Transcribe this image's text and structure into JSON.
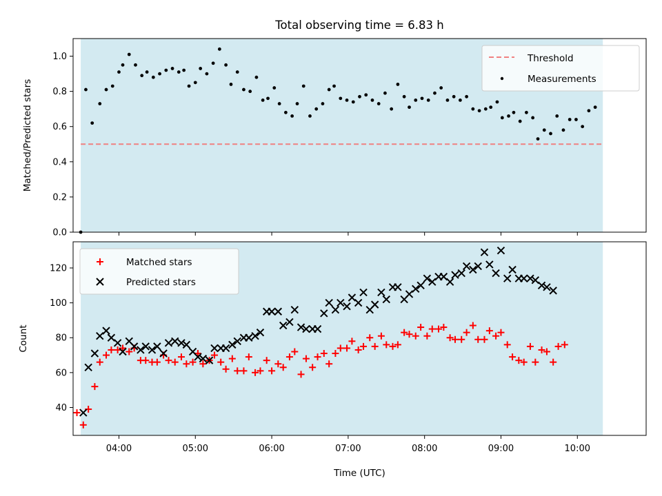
{
  "chart_data": [
    {
      "type": "scatter",
      "panel": "top",
      "title": "Total observing time = 6.83 h",
      "ylabel": "Matched/Predicted stars",
      "xlabel": "",
      "xlim": [
        "03:24",
        "10:54"
      ],
      "ylim": [
        0,
        1.1
      ],
      "yticks": [
        "0.0",
        "0.2",
        "0.4",
        "0.6",
        "0.8",
        "1.0"
      ],
      "observing_window": [
        "03:30",
        "10:20"
      ],
      "observing_window_color": "#d3eaf1",
      "legend_position": "top-right",
      "threshold": {
        "name": "Threshold",
        "value": 0.5,
        "x_range": [
          "03:30",
          "10:20"
        ],
        "color": "#f08080"
      },
      "series": [
        {
          "name": "Measurements",
          "color": "#000000",
          "points": [
            [
              "03:30",
              0.0
            ],
            [
              "03:34",
              0.81
            ],
            [
              "03:39",
              0.62
            ],
            [
              "03:45",
              0.73
            ],
            [
              "03:50",
              0.81
            ],
            [
              "03:55",
              0.83
            ],
            [
              "04:00",
              0.91
            ],
            [
              "04:03",
              0.95
            ],
            [
              "04:08",
              1.01
            ],
            [
              "04:13",
              0.95
            ],
            [
              "04:18",
              0.89
            ],
            [
              "04:22",
              0.91
            ],
            [
              "04:27",
              0.88
            ],
            [
              "04:32",
              0.9
            ],
            [
              "04:37",
              0.92
            ],
            [
              "04:42",
              0.93
            ],
            [
              "04:47",
              0.91
            ],
            [
              "04:51",
              0.92
            ],
            [
              "04:55",
              0.83
            ],
            [
              "05:00",
              0.85
            ],
            [
              "05:04",
              0.93
            ],
            [
              "05:09",
              0.9
            ],
            [
              "05:14",
              0.96
            ],
            [
              "05:19",
              1.04
            ],
            [
              "05:24",
              0.95
            ],
            [
              "05:28",
              0.84
            ],
            [
              "05:33",
              0.91
            ],
            [
              "05:38",
              0.81
            ],
            [
              "05:43",
              0.8
            ],
            [
              "05:48",
              0.88
            ],
            [
              "05:53",
              0.75
            ],
            [
              "05:57",
              0.76
            ],
            [
              "06:02",
              0.82
            ],
            [
              "06:06",
              0.73
            ],
            [
              "06:11",
              0.68
            ],
            [
              "06:16",
              0.66
            ],
            [
              "06:20",
              0.73
            ],
            [
              "06:25",
              0.83
            ],
            [
              "06:30",
              0.66
            ],
            [
              "06:35",
              0.7
            ],
            [
              "06:40",
              0.73
            ],
            [
              "06:45",
              0.81
            ],
            [
              "06:49",
              0.83
            ],
            [
              "06:54",
              0.76
            ],
            [
              "06:59",
              0.75
            ],
            [
              "07:04",
              0.74
            ],
            [
              "07:09",
              0.77
            ],
            [
              "07:14",
              0.78
            ],
            [
              "07:19",
              0.75
            ],
            [
              "07:24",
              0.73
            ],
            [
              "07:29",
              0.79
            ],
            [
              "07:34",
              0.7
            ],
            [
              "07:39",
              0.84
            ],
            [
              "07:44",
              0.77
            ],
            [
              "07:48",
              0.71
            ],
            [
              "07:53",
              0.75
            ],
            [
              "07:58",
              0.76
            ],
            [
              "08:03",
              0.75
            ],
            [
              "08:08",
              0.79
            ],
            [
              "08:13",
              0.82
            ],
            [
              "08:18",
              0.75
            ],
            [
              "08:23",
              0.77
            ],
            [
              "08:28",
              0.75
            ],
            [
              "08:33",
              0.77
            ],
            [
              "08:38",
              0.7
            ],
            [
              "08:43",
              0.69
            ],
            [
              "08:48",
              0.7
            ],
            [
              "08:52",
              0.71
            ],
            [
              "08:57",
              0.74
            ],
            [
              "09:01",
              0.65
            ],
            [
              "09:06",
              0.66
            ],
            [
              "09:10",
              0.68
            ],
            [
              "09:15",
              0.63
            ],
            [
              "09:20",
              0.68
            ],
            [
              "09:25",
              0.65
            ],
            [
              "09:29",
              0.53
            ],
            [
              "09:34",
              0.58
            ],
            [
              "09:39",
              0.56
            ],
            [
              "09:44",
              0.66
            ],
            [
              "09:49",
              0.58
            ],
            [
              "09:54",
              0.64
            ],
            [
              "09:59",
              0.64
            ],
            [
              "10:04",
              0.6
            ],
            [
              "10:09",
              0.69
            ],
            [
              "10:14",
              0.71
            ]
          ]
        }
      ]
    },
    {
      "type": "scatter",
      "panel": "bottom",
      "title": "",
      "ylabel": "Count",
      "xlabel": "Time (UTC)",
      "xlim": [
        "03:24",
        "10:54"
      ],
      "ylim": [
        24,
        135
      ],
      "yticks": [
        40,
        60,
        80,
        100,
        120
      ],
      "xticks": [
        "04:00",
        "05:00",
        "06:00",
        "07:00",
        "08:00",
        "09:00",
        "10:00"
      ],
      "observing_window": [
        "03:30",
        "10:20"
      ],
      "observing_window_color": "#d3eaf1",
      "legend_position": "top-left",
      "series": [
        {
          "name": "Matched stars",
          "marker": "plus",
          "color": "#ff0000",
          "points": [
            [
              "03:27",
              37
            ],
            [
              "03:32",
              30
            ],
            [
              "03:36",
              39
            ],
            [
              "03:41",
              52
            ],
            [
              "03:45",
              66
            ],
            [
              "03:50",
              70
            ],
            [
              "03:54",
              73
            ],
            [
              "03:59",
              73
            ],
            [
              "04:03",
              74
            ],
            [
              "04:08",
              72
            ],
            [
              "04:12",
              74
            ],
            [
              "04:17",
              67
            ],
            [
              "04:21",
              67
            ],
            [
              "04:26",
              66
            ],
            [
              "04:30",
              66
            ],
            [
              "04:35",
              70
            ],
            [
              "04:39",
              67
            ],
            [
              "04:44",
              66
            ],
            [
              "04:49",
              69
            ],
            [
              "04:53",
              65
            ],
            [
              "04:58",
              66
            ],
            [
              "05:02",
              71
            ],
            [
              "05:06",
              65
            ],
            [
              "05:11",
              67
            ],
            [
              "05:15",
              70
            ],
            [
              "05:20",
              66
            ],
            [
              "05:24",
              62
            ],
            [
              "05:29",
              68
            ],
            [
              "05:33",
              61
            ],
            [
              "05:38",
              61
            ],
            [
              "05:42",
              69
            ],
            [
              "05:47",
              60
            ],
            [
              "05:51",
              61
            ],
            [
              "05:56",
              67
            ],
            [
              "06:00",
              61
            ],
            [
              "06:05",
              65
            ],
            [
              "06:09",
              63
            ],
            [
              "06:14",
              69
            ],
            [
              "06:18",
              72
            ],
            [
              "06:23",
              59
            ],
            [
              "06:27",
              68
            ],
            [
              "06:32",
              63
            ],
            [
              "06:36",
              69
            ],
            [
              "06:41",
              71
            ],
            [
              "06:45",
              65
            ],
            [
              "06:50",
              71
            ],
            [
              "06:54",
              74
            ],
            [
              "06:59",
              74
            ],
            [
              "07:03",
              78
            ],
            [
              "07:08",
              73
            ],
            [
              "07:12",
              75
            ],
            [
              "07:17",
              80
            ],
            [
              "07:21",
              75
            ],
            [
              "07:26",
              81
            ],
            [
              "07:30",
              76
            ],
            [
              "07:35",
              75
            ],
            [
              "07:39",
              76
            ],
            [
              "07:44",
              83
            ],
            [
              "07:48",
              82
            ],
            [
              "07:53",
              81
            ],
            [
              "07:57",
              86
            ],
            [
              "08:02",
              81
            ],
            [
              "08:06",
              85
            ],
            [
              "08:11",
              85
            ],
            [
              "08:15",
              86
            ],
            [
              "08:20",
              80
            ],
            [
              "08:24",
              79
            ],
            [
              "08:29",
              79
            ],
            [
              "08:33",
              83
            ],
            [
              "08:38",
              87
            ],
            [
              "08:42",
              79
            ],
            [
              "08:47",
              79
            ],
            [
              "08:51",
              84
            ],
            [
              "08:56",
              81
            ],
            [
              "09:00",
              83
            ],
            [
              "09:05",
              76
            ],
            [
              "09:09",
              69
            ],
            [
              "09:14",
              67
            ],
            [
              "09:18",
              66
            ],
            [
              "09:23",
              75
            ],
            [
              "09:27",
              66
            ],
            [
              "09:32",
              73
            ],
            [
              "09:36",
              72
            ],
            [
              "09:41",
              66
            ],
            [
              "09:45",
              75
            ],
            [
              "09:50",
              76
            ]
          ]
        },
        {
          "name": "Predicted stars",
          "marker": "x",
          "color": "#000000",
          "points": [
            [
              "03:32",
              37
            ],
            [
              "03:36",
              63
            ],
            [
              "03:41",
              71
            ],
            [
              "03:45",
              81
            ],
            [
              "03:50",
              84
            ],
            [
              "03:54",
              80
            ],
            [
              "03:59",
              77
            ],
            [
              "04:03",
              72
            ],
            [
              "04:08",
              78
            ],
            [
              "04:12",
              75
            ],
            [
              "04:17",
              73
            ],
            [
              "04:21",
              75
            ],
            [
              "04:26",
              73
            ],
            [
              "04:30",
              75
            ],
            [
              "04:35",
              71
            ],
            [
              "04:39",
              77
            ],
            [
              "04:44",
              78
            ],
            [
              "04:49",
              77
            ],
            [
              "04:53",
              76
            ],
            [
              "04:58",
              72
            ],
            [
              "05:02",
              69
            ],
            [
              "05:06",
              68
            ],
            [
              "05:11",
              67
            ],
            [
              "05:15",
              74
            ],
            [
              "05:20",
              74
            ],
            [
              "05:24",
              74
            ],
            [
              "05:29",
              76
            ],
            [
              "05:33",
              78
            ],
            [
              "05:38",
              80
            ],
            [
              "05:42",
              80
            ],
            [
              "05:47",
              81
            ],
            [
              "05:51",
              83
            ],
            [
              "05:56",
              95
            ],
            [
              "06:00",
              95
            ],
            [
              "06:05",
              95
            ],
            [
              "06:09",
              87
            ],
            [
              "06:14",
              89
            ],
            [
              "06:18",
              96
            ],
            [
              "06:23",
              86
            ],
            [
              "06:27",
              85
            ],
            [
              "06:32",
              85
            ],
            [
              "06:36",
              85
            ],
            [
              "06:41",
              94
            ],
            [
              "06:45",
              100
            ],
            [
              "06:50",
              96
            ],
            [
              "06:54",
              100
            ],
            [
              "06:59",
              98
            ],
            [
              "07:03",
              103
            ],
            [
              "07:08",
              100
            ],
            [
              "07:12",
              106
            ],
            [
              "07:17",
              96
            ],
            [
              "07:21",
              99
            ],
            [
              "07:26",
              106
            ],
            [
              "07:30",
              102
            ],
            [
              "07:35",
              109
            ],
            [
              "07:39",
              109
            ],
            [
              "07:44",
              102
            ],
            [
              "07:48",
              105
            ],
            [
              "07:53",
              108
            ],
            [
              "07:57",
              110
            ],
            [
              "08:02",
              114
            ],
            [
              "08:06",
              112
            ],
            [
              "08:11",
              115
            ],
            [
              "08:15",
              115
            ],
            [
              "08:20",
              112
            ],
            [
              "08:24",
              116
            ],
            [
              "08:29",
              117
            ],
            [
              "08:33",
              121
            ],
            [
              "08:38",
              119
            ],
            [
              "08:42",
              121
            ],
            [
              "08:47",
              129
            ],
            [
              "08:51",
              122
            ],
            [
              "08:56",
              117
            ],
            [
              "09:00",
              130
            ],
            [
              "09:05",
              114
            ],
            [
              "09:09",
              119
            ],
            [
              "09:14",
              114
            ],
            [
              "09:18",
              114
            ],
            [
              "09:23",
              114
            ],
            [
              "09:27",
              113
            ],
            [
              "09:32",
              110
            ],
            [
              "09:36",
              109
            ],
            [
              "09:41",
              107
            ]
          ]
        }
      ]
    }
  ]
}
